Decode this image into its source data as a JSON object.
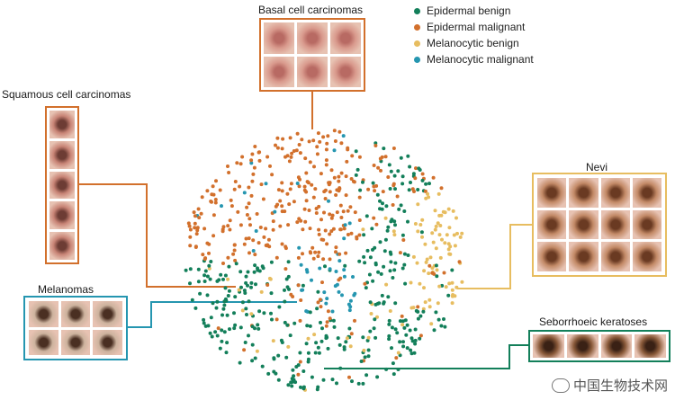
{
  "legend": [
    {
      "name": "Epidermal benign",
      "color": "#137f5a"
    },
    {
      "name": "Epidermal malignant",
      "color": "#d2702c"
    },
    {
      "name": "Melanocytic benign",
      "color": "#e7bd60"
    },
    {
      "name": "Melanocytic malignant",
      "color": "#2596b0"
    }
  ],
  "groups": {
    "basal": {
      "label": "Basal cell carcinomas",
      "color": "#d2702c",
      "image_count": 6
    },
    "squamous": {
      "label": "Squamous cell carcinomas",
      "color": "#d2702c",
      "image_count": 5
    },
    "melanomas": {
      "label": "Melanomas",
      "color": "#2596b0",
      "image_count": 6
    },
    "nevi": {
      "label": "Nevi",
      "color": "#e7bd60",
      "image_count": 12
    },
    "seb": {
      "label": "Seborrhoeic keratoses",
      "color": "#137f5a",
      "image_count": 4
    }
  },
  "watermark": "中国生物技术网"
}
